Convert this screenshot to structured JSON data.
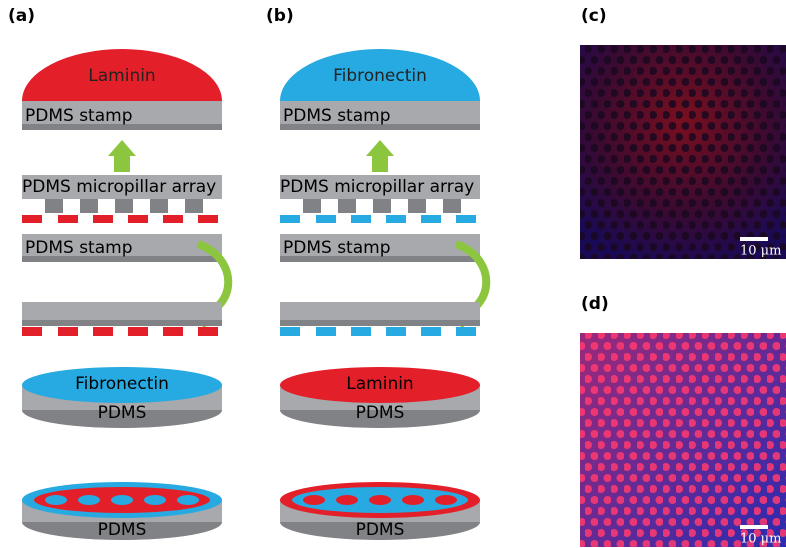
{
  "panels": [
    {
      "label": "(a)",
      "ink": "Laminin",
      "stamp": "PDMS stamp",
      "array": "PDMS micropillar array",
      "stamp_again": "PDMS stamp",
      "disc_ink": "Fibronectin",
      "disc_base": "PDMS",
      "final_base": "PDMS"
    },
    {
      "label": "(b)",
      "ink": "Fibronectin",
      "stamp": "PDMS stamp",
      "array": "PDMS micropillar array",
      "stamp_again": "PDMS stamp",
      "disc_ink": "Laminin",
      "disc_base": "PDMS",
      "final_base": "PDMS"
    }
  ],
  "images": [
    {
      "label": "(c)",
      "scale": "10 μm"
    },
    {
      "label": "(d)",
      "scale": "10 μm"
    }
  ]
}
